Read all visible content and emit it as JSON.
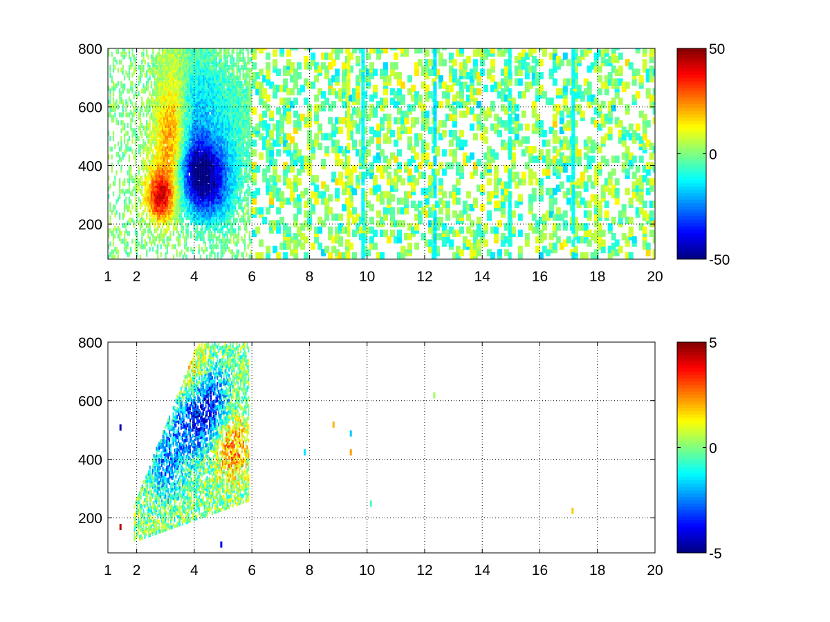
{
  "chart_data": [
    {
      "type": "heatmap",
      "title": "",
      "xlabel": "",
      "ylabel": "",
      "x_ticks": [
        1,
        2,
        4,
        6,
        8,
        10,
        12,
        14,
        16,
        18,
        20
      ],
      "y_ticks": [
        200,
        400,
        600,
        800
      ],
      "xlim": [
        1,
        20
      ],
      "ylim": [
        80,
        800
      ],
      "grid": true,
      "grid_style": "dotted",
      "colormap": "jet",
      "colorbar": {
        "min": -50,
        "max": 50,
        "ticks": [
          50,
          0,
          -50
        ]
      },
      "blobs": [
        {
          "x": 2.8,
          "y": 290,
          "sx": 0.35,
          "sy": 60,
          "value": 40
        },
        {
          "x": 3.2,
          "y": 470,
          "sx": 0.4,
          "sy": 110,
          "value": 25
        },
        {
          "x": 3.4,
          "y": 660,
          "sx": 0.45,
          "sy": 110,
          "value": 12
        },
        {
          "x": 4.0,
          "y": 380,
          "sx": 0.45,
          "sy": 90,
          "value": -38
        },
        {
          "x": 3.9,
          "y": 620,
          "sx": 0.5,
          "sy": 110,
          "value": -18
        },
        {
          "x": 4.6,
          "y": 330,
          "sx": 0.5,
          "sy": 90,
          "value": -30
        },
        {
          "x": 5.0,
          "y": 520,
          "sx": 0.6,
          "sy": 150,
          "value": -10
        }
      ],
      "region": {
        "x_dense_max": 6.0,
        "background_level": 3,
        "background_density": 0.24
      },
      "stripes": [
        {
          "x": 9.8,
          "value": -12
        },
        {
          "x": 12.3,
          "value": -14
        },
        {
          "x": 14.9,
          "value": -10
        },
        {
          "x": 17.1,
          "value": -12
        },
        {
          "x": 9.3,
          "value": 10
        }
      ]
    },
    {
      "type": "heatmap",
      "title": "",
      "xlabel": "",
      "ylabel": "",
      "x_ticks": [
        1,
        2,
        4,
        6,
        8,
        10,
        12,
        14,
        16,
        18,
        20
      ],
      "y_ticks": [
        200,
        400,
        600,
        800
      ],
      "xlim": [
        1,
        20
      ],
      "ylim": [
        80,
        800
      ],
      "grid": true,
      "grid_style": "dotted",
      "colormap": "jet",
      "colorbar": {
        "min": -5,
        "max": 5,
        "ticks": [
          5,
          0,
          -5
        ]
      },
      "blobs": [
        {
          "x": 3.9,
          "y": 520,
          "sx": 0.45,
          "sy": 80,
          "value": -3.5
        },
        {
          "x": 3.0,
          "y": 380,
          "sx": 0.4,
          "sy": 80,
          "value": -2.5
        },
        {
          "x": 3.8,
          "y": 700,
          "sx": 0.5,
          "sy": 90,
          "value": 1.5
        },
        {
          "x": 5.3,
          "y": 430,
          "sx": 0.4,
          "sy": 70,
          "value": 2.5
        },
        {
          "x": 4.6,
          "y": 600,
          "sx": 0.4,
          "sy": 80,
          "value": -3
        }
      ],
      "isolated_points": [
        {
          "x": 7.8,
          "y": 415,
          "value": -1.5
        },
        {
          "x": 8.8,
          "y": 510,
          "value": 2.0
        },
        {
          "x": 9.4,
          "y": 480,
          "value": -1.8
        },
        {
          "x": 9.4,
          "y": 415,
          "value": 2.2
        },
        {
          "x": 10.1,
          "y": 240,
          "value": -0.5
        },
        {
          "x": 12.3,
          "y": 610,
          "value": 0.3
        },
        {
          "x": 17.1,
          "y": 215,
          "value": 1.8
        },
        {
          "x": 1.4,
          "y": 160,
          "value": 4.5
        },
        {
          "x": 1.4,
          "y": 500,
          "value": -4.5
        },
        {
          "x": 4.9,
          "y": 100,
          "value": -4.0
        }
      ]
    }
  ]
}
